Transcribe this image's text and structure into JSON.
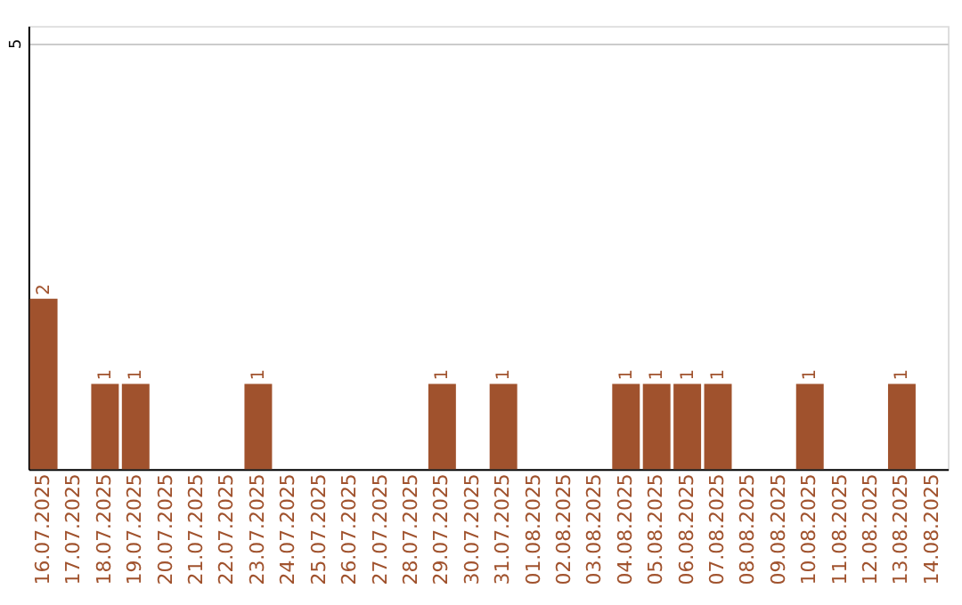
{
  "chart_data": {
    "type": "bar",
    "categories": [
      "16.07.2025",
      "17.07.2025",
      "18.07.2025",
      "19.07.2025",
      "20.07.2025",
      "21.07.2025",
      "22.07.2025",
      "23.07.2025",
      "24.07.2025",
      "25.07.2025",
      "26.07.2025",
      "27.07.2025",
      "28.07.2025",
      "29.07.2025",
      "30.07.2025",
      "31.07.2025",
      "01.08.2025",
      "02.08.2025",
      "03.08.2025",
      "04.08.2025",
      "05.08.2025",
      "06.08.2025",
      "07.08.2025",
      "08.08.2025",
      "09.08.2025",
      "10.08.2025",
      "11.08.2025",
      "12.08.2025",
      "13.08.2025",
      "14.08.2025"
    ],
    "values": [
      2,
      0,
      1,
      1,
      0,
      0,
      0,
      1,
      0,
      0,
      0,
      0,
      0,
      1,
      0,
      1,
      0,
      0,
      0,
      1,
      1,
      1,
      1,
      0,
      0,
      1,
      0,
      0,
      1,
      0
    ],
    "value_labels": [
      "2",
      null,
      "1",
      "1",
      null,
      null,
      null,
      "1",
      null,
      null,
      null,
      null,
      null,
      "1",
      null,
      "1",
      null,
      null,
      null,
      "1",
      "1",
      "1",
      "1",
      null,
      null,
      "1",
      null,
      null,
      "1",
      null
    ],
    "color": "#a0522d",
    "ylim": [
      0,
      5.2
    ],
    "yticks": [
      5
    ],
    "grid": "y"
  }
}
